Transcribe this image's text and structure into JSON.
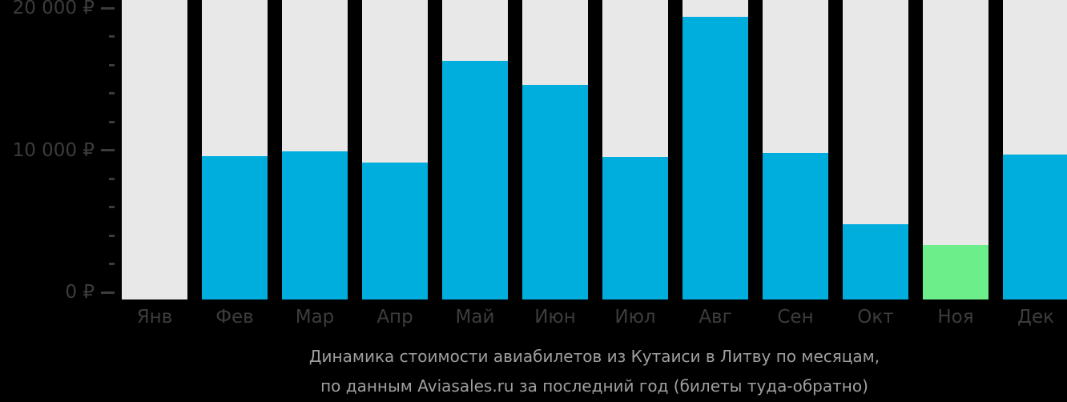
{
  "chart_data": {
    "type": "bar",
    "title_line1": "Динамика стоимости авиабилетов из Кутаиси в Литву по месяцам,",
    "title_line2": "по данным Aviasales.ru за последний год (билеты туда-обратно)",
    "currency_symbol": "₽",
    "categories": [
      "Янв",
      "Фев",
      "Мар",
      "Апр",
      "Май",
      "Июн",
      "Июл",
      "Авг",
      "Сен",
      "Окт",
      "Ноя",
      "Дек"
    ],
    "values": [
      null,
      9600,
      9900,
      9100,
      16300,
      14600,
      9500,
      19400,
      9800,
      4800,
      3300,
      9700
    ],
    "min_price_index": 10,
    "no_data_indices": [
      0
    ],
    "y_axis": {
      "range": [
        0,
        20000
      ],
      "minor_tick_step": 2000,
      "ticks": [
        {
          "value": 0,
          "label": "0 ₽"
        },
        {
          "value": 10000,
          "label": "10 000 ₽"
        },
        {
          "value": 20000,
          "label": "20 000 ₽"
        }
      ]
    },
    "legend": null,
    "grid": false,
    "colors": {
      "bar": "#00aedd",
      "min_bar": "#6cee8a",
      "placeholder": "#e8e8e8",
      "axis_text": "#3c3c3c",
      "title_text": "#9f9f9f",
      "background": "#000000"
    }
  }
}
